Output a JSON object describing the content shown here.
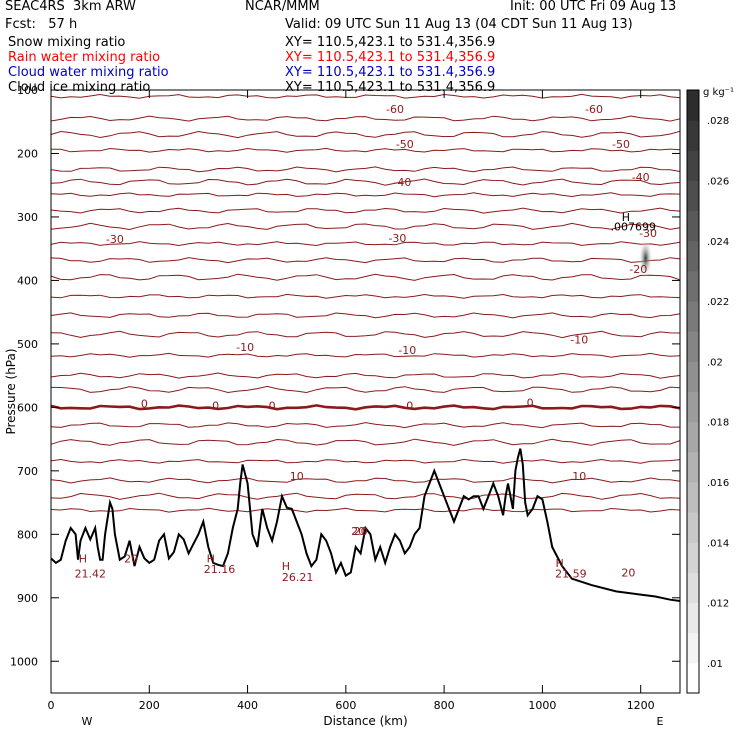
{
  "header": {
    "model": "SEAC4RS  3km ARW",
    "center": "NCAR/MMM",
    "init": "Init: 00 UTC Fri 09 Aug 13",
    "fcst": "Fcst:   57 h",
    "valid": "Valid: 09 UTC Sun 11 Aug 13 (04 CDT Sun 11 Aug 13)"
  },
  "fields": [
    {
      "name": "Snow mixing ratio",
      "xy": "XY= 110.5,423.1 to 531.4,356.9",
      "color": "#000000"
    },
    {
      "name": "Rain water mixing ratio",
      "xy": "XY= 110.5,423.1 to 531.4,356.9",
      "color": "#ff0000"
    },
    {
      "name": "Cloud water mixing ratio",
      "xy": "XY= 110.5,423.1 to 531.4,356.9",
      "color": "#0000cc"
    },
    {
      "name": "Cloud ice mixing ratio",
      "xy": "XY= 110.5,423.1 to 531.4,356.9",
      "color": "#000000"
    }
  ],
  "chart_data": {
    "type": "cross-section",
    "xlabel": "Distance (km)",
    "ylabel": "Pressure (hPa)",
    "xlim": [
      0,
      1280
    ],
    "ylim": [
      1050,
      100
    ],
    "x_ticks": [
      0,
      200,
      400,
      600,
      800,
      1000,
      1200
    ],
    "y_ticks": [
      100,
      200,
      300,
      400,
      500,
      600,
      700,
      800,
      900,
      1000
    ],
    "x_end_labels": {
      "left": "W",
      "right": "E"
    },
    "colorbar": {
      "unit": "g kg⁻¹",
      "ticks": [
        ".01",
        ".012",
        ".014",
        ".016",
        ".018",
        ".02",
        ".022",
        ".024",
        ".026",
        ".028"
      ],
      "tick_values": [
        0.01,
        0.012,
        0.014,
        0.016,
        0.018,
        0.02,
        0.022,
        0.024,
        0.026,
        0.028
      ],
      "range": [
        0.009,
        0.029
      ]
    },
    "temperature_isotherm_pressures": [
      110,
      145,
      170,
      195,
      225,
      245,
      265,
      290,
      315,
      342,
      368,
      395,
      425,
      455,
      485,
      518,
      550,
      572,
      600,
      628,
      655,
      685,
      715,
      740,
      762
    ],
    "isotherm_labels": [
      {
        "text": "-60",
        "x": 700,
        "p": 130
      },
      {
        "text": "-60",
        "x": 1105,
        "p": 130
      },
      {
        "text": "-50",
        "x": 720,
        "p": 185
      },
      {
        "text": "-50",
        "x": 1160,
        "p": 185
      },
      {
        "text": "-40",
        "x": 715,
        "p": 245
      },
      {
        "text": "-40",
        "x": 1200,
        "p": 237
      },
      {
        "text": "-30",
        "x": 130,
        "p": 335
      },
      {
        "text": "-30",
        "x": 705,
        "p": 333
      },
      {
        "text": "-30",
        "x": 1215,
        "p": 325
      },
      {
        "text": "-20",
        "x": 1195,
        "p": 382
      },
      {
        "text": "-10",
        "x": 395,
        "p": 505
      },
      {
        "text": "-10",
        "x": 725,
        "p": 510
      },
      {
        "text": "-10",
        "x": 1075,
        "p": 493
      },
      {
        "text": "0",
        "x": 190,
        "p": 594
      },
      {
        "text": "0",
        "x": 335,
        "p": 597
      },
      {
        "text": "0",
        "x": 450,
        "p": 597
      },
      {
        "text": "0",
        "x": 730,
        "p": 597
      },
      {
        "text": "0",
        "x": 975,
        "p": 592
      },
      {
        "text": "10",
        "x": 500,
        "p": 708
      },
      {
        "text": "10",
        "x": 1075,
        "p": 708
      },
      {
        "text": "20",
        "x": 625,
        "p": 795
      },
      {
        "text": "20",
        "x": 1175,
        "p": 860
      }
    ],
    "terrain_profile": [
      [
        0,
        838
      ],
      [
        10,
        845
      ],
      [
        20,
        840
      ],
      [
        30,
        810
      ],
      [
        40,
        790
      ],
      [
        50,
        800
      ],
      [
        55,
        840
      ],
      [
        60,
        810
      ],
      [
        70,
        790
      ],
      [
        80,
        808
      ],
      [
        90,
        790
      ],
      [
        95,
        820
      ],
      [
        100,
        840
      ],
      [
        105,
        840
      ],
      [
        110,
        800
      ],
      [
        120,
        750
      ],
      [
        125,
        760
      ],
      [
        130,
        800
      ],
      [
        140,
        840
      ],
      [
        150,
        835
      ],
      [
        160,
        810
      ],
      [
        170,
        850
      ],
      [
        180,
        820
      ],
      [
        190,
        838
      ],
      [
        200,
        845
      ],
      [
        210,
        840
      ],
      [
        220,
        810
      ],
      [
        230,
        800
      ],
      [
        240,
        838
      ],
      [
        250,
        828
      ],
      [
        260,
        800
      ],
      [
        270,
        808
      ],
      [
        280,
        830
      ],
      [
        290,
        815
      ],
      [
        300,
        800
      ],
      [
        310,
        780
      ],
      [
        320,
        820
      ],
      [
        330,
        845
      ],
      [
        340,
        848
      ],
      [
        350,
        850
      ],
      [
        360,
        830
      ],
      [
        370,
        790
      ],
      [
        380,
        760
      ],
      [
        385,
        720
      ],
      [
        390,
        690
      ],
      [
        400,
        720
      ],
      [
        410,
        800
      ],
      [
        420,
        820
      ],
      [
        425,
        790
      ],
      [
        430,
        760
      ],
      [
        440,
        790
      ],
      [
        450,
        810
      ],
      [
        460,
        780
      ],
      [
        470,
        740
      ],
      [
        480,
        758
      ],
      [
        490,
        760
      ],
      [
        500,
        780
      ],
      [
        510,
        800
      ],
      [
        520,
        830
      ],
      [
        530,
        850
      ],
      [
        540,
        840
      ],
      [
        550,
        800
      ],
      [
        560,
        810
      ],
      [
        570,
        830
      ],
      [
        580,
        860
      ],
      [
        590,
        845
      ],
      [
        600,
        865
      ],
      [
        610,
        860
      ],
      [
        620,
        820
      ],
      [
        630,
        830
      ],
      [
        640,
        790
      ],
      [
        650,
        800
      ],
      [
        660,
        840
      ],
      [
        670,
        820
      ],
      [
        680,
        845
      ],
      [
        690,
        820
      ],
      [
        700,
        800
      ],
      [
        710,
        810
      ],
      [
        720,
        830
      ],
      [
        730,
        820
      ],
      [
        740,
        800
      ],
      [
        750,
        790
      ],
      [
        760,
        740
      ],
      [
        770,
        720
      ],
      [
        780,
        700
      ],
      [
        790,
        720
      ],
      [
        800,
        740
      ],
      [
        810,
        760
      ],
      [
        820,
        780
      ],
      [
        830,
        760
      ],
      [
        840,
        740
      ],
      [
        850,
        745
      ],
      [
        860,
        740
      ],
      [
        870,
        740
      ],
      [
        880,
        760
      ],
      [
        890,
        740
      ],
      [
        900,
        720
      ],
      [
        910,
        740
      ],
      [
        920,
        770
      ],
      [
        925,
        740
      ],
      [
        930,
        720
      ],
      [
        940,
        760
      ],
      [
        945,
        700
      ],
      [
        950,
        680
      ],
      [
        955,
        665
      ],
      [
        960,
        690
      ],
      [
        965,
        750
      ],
      [
        970,
        770
      ],
      [
        980,
        760
      ],
      [
        990,
        740
      ],
      [
        1000,
        745
      ],
      [
        1010,
        780
      ],
      [
        1020,
        820
      ],
      [
        1040,
        850
      ],
      [
        1060,
        870
      ],
      [
        1100,
        880
      ],
      [
        1150,
        890
      ],
      [
        1200,
        895
      ],
      [
        1230,
        898
      ],
      [
        1260,
        903
      ],
      [
        1280,
        905
      ]
    ],
    "hl_marks": [
      {
        "text": "H",
        "x": 65,
        "p": 838
      },
      {
        "text": "21.42",
        "x": 80,
        "p": 862
      },
      {
        "text": "20",
        "x": 163,
        "p": 838
      },
      {
        "text": "H",
        "x": 325,
        "p": 838
      },
      {
        "text": "21.16",
        "x": 343,
        "p": 855
      },
      {
        "text": "H",
        "x": 478,
        "p": 850
      },
      {
        "text": "26.21",
        "x": 502,
        "p": 867
      },
      {
        "text": "20",
        "x": 630,
        "p": 795
      },
      {
        "text": "H",
        "x": 1035,
        "p": 845
      },
      {
        "text": "21.59",
        "x": 1058,
        "p": 862
      },
      {
        "text": "H",
        "x": 1170,
        "p": 300
      },
      {
        "text": ".007699",
        "x": 1185,
        "p": 315
      }
    ],
    "shaded_max": {
      "x": 1210,
      "p": 365,
      "value": 0.007699
    }
  }
}
